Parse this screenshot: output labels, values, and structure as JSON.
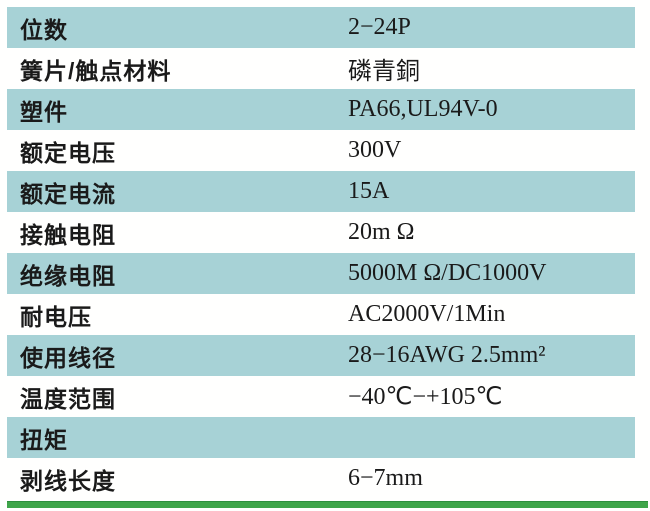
{
  "table": {
    "rows": [
      {
        "label": "位数",
        "value": "2−24P",
        "highlighted": true
      },
      {
        "label": "簧片/触点材料",
        "value": "磷青銅",
        "highlighted": false
      },
      {
        "label": "塑件",
        "value": "PA66,UL94V-0",
        "highlighted": true
      },
      {
        "label": "额定电压",
        "value": "300V",
        "highlighted": false
      },
      {
        "label": "额定电流",
        "value": "15A",
        "highlighted": true
      },
      {
        "label": "接触电阻",
        "value": "20m Ω",
        "highlighted": false
      },
      {
        "label": "绝缘电阻",
        "value": "5000M Ω/DC1000V",
        "highlighted": true
      },
      {
        "label": "耐电压",
        "value": "AC2000V/1Min",
        "highlighted": false
      },
      {
        "label": "使用线径",
        "value": "28−16AWG  2.5mm²",
        "highlighted": true
      },
      {
        "label": "温度范围",
        "value": "−40℃−+105℃",
        "highlighted": false
      },
      {
        "label": "扭矩",
        "value": "",
        "highlighted": true
      },
      {
        "label": "剥线长度",
        "value": "6−7mm",
        "highlighted": false
      }
    ]
  },
  "colors": {
    "row_highlight": "#a7d2d6",
    "accent_bar": "#3fa54a",
    "text": "#1a1a1a",
    "background": "#fffffe"
  }
}
